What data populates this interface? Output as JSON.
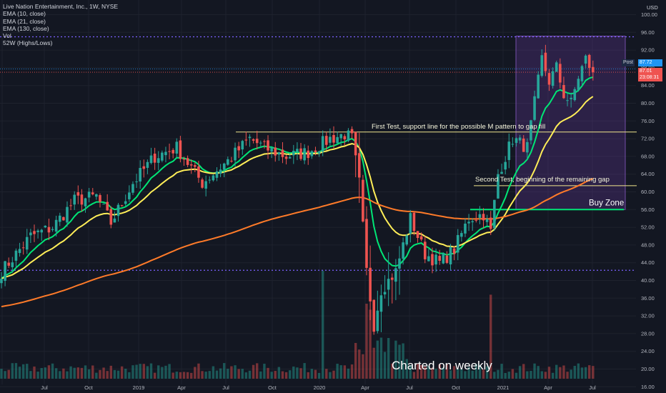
{
  "legend": {
    "title": "Live Nation Entertainment, Inc., 1W, NYSE",
    "ema10": "EMA (10, close)",
    "ema21": "EMA (21, close)",
    "ema130": "EMA (130, close)",
    "vol": "Vol",
    "w52": "52W (Highs/Lows)"
  },
  "price_tags": {
    "post_label": "Post",
    "post_value": "87.72",
    "last_value": "87.01",
    "countdown": "23:08:31"
  },
  "colors": {
    "up": "#26a69a",
    "down": "#ef5350",
    "ema10": "#00e676",
    "ema21": "#ffee58",
    "ema130": "#ff7b29",
    "buy_zone_fill": "#4a2c6e",
    "buy_zone_line": "#00e676",
    "support_line": "#f0e68c",
    "dotted_high": "#7b61ff",
    "post": "#2196f3",
    "last": "#ef5350"
  },
  "chart_data": {
    "type": "candlestick",
    "title": "Live Nation Entertainment, Inc., 1W, NYSE",
    "y_axis": {
      "label": "USD",
      "ticks": [
        16,
        20,
        24,
        28,
        32,
        36,
        40,
        44,
        48,
        52,
        56,
        60,
        64,
        68,
        72,
        76,
        80,
        84,
        88,
        92,
        96,
        100
      ],
      "range": [
        15,
        103
      ]
    },
    "x_axis": {
      "ticks": [
        "Jul",
        "Oct",
        "2019",
        "Apr",
        "Jul",
        "Oct",
        "2020",
        "Apr",
        "Jul",
        "Oct",
        "2021",
        "Apr",
        "Jul"
      ]
    },
    "key_points": [
      {
        "t": 0,
        "p": 42
      },
      {
        "t": 8,
        "p": 50
      },
      {
        "t": 14,
        "p": 52
      },
      {
        "t": 20,
        "p": 58
      },
      {
        "t": 26,
        "p": 59
      },
      {
        "t": 30,
        "p": 53
      },
      {
        "t": 36,
        "p": 62
      },
      {
        "t": 42,
        "p": 68
      },
      {
        "t": 48,
        "p": 70
      },
      {
        "t": 55,
        "p": 62
      },
      {
        "t": 62,
        "p": 67
      },
      {
        "t": 68,
        "p": 72
      },
      {
        "t": 72,
        "p": 70
      },
      {
        "t": 78,
        "p": 68
      },
      {
        "t": 84,
        "p": 69
      },
      {
        "t": 90,
        "p": 72
      },
      {
        "t": 94,
        "p": 73
      },
      {
        "t": 96,
        "p": 72
      },
      {
        "t": 98,
        "p": 62
      },
      {
        "t": 100,
        "p": 42
      },
      {
        "t": 102,
        "p": 30
      },
      {
        "t": 104,
        "p": 38
      },
      {
        "t": 108,
        "p": 42
      },
      {
        "t": 112,
        "p": 54
      },
      {
        "t": 116,
        "p": 46
      },
      {
        "t": 120,
        "p": 44
      },
      {
        "t": 124,
        "p": 47
      },
      {
        "t": 128,
        "p": 54
      },
      {
        "t": 132,
        "p": 55
      },
      {
        "t": 134,
        "p": 51
      },
      {
        "t": 136,
        "p": 64
      },
      {
        "t": 140,
        "p": 72
      },
      {
        "t": 144,
        "p": 70
      },
      {
        "t": 146,
        "p": 80
      },
      {
        "t": 148,
        "p": 90
      },
      {
        "t": 150,
        "p": 85
      },
      {
        "t": 152,
        "p": 88
      },
      {
        "t": 154,
        "p": 82
      },
      {
        "t": 156,
        "p": 80
      },
      {
        "t": 158,
        "p": 86
      },
      {
        "t": 160,
        "p": 90
      },
      {
        "t": 162,
        "p": 87
      }
    ],
    "volume_spikes": [
      {
        "t": 88,
        "v": 36
      },
      {
        "t": 100,
        "v": 25
      },
      {
        "t": 101,
        "v": 23
      },
      {
        "t": 134,
        "v": 28
      }
    ],
    "lines": {
      "resistance_high": 95,
      "range_low_dotted": 42.3,
      "current_price_line": 87.72,
      "support_first_test": 73.5,
      "support_second_test": 61.4,
      "buy_zone_bottom": 56
    },
    "annotations": [
      {
        "text": "First Test, support line for the possible M pattern to gap fill"
      },
      {
        "text": "Second Test, beginning of the remaining gap"
      },
      {
        "text": "Buy Zone"
      },
      {
        "text": "Charted on weekly"
      }
    ]
  }
}
